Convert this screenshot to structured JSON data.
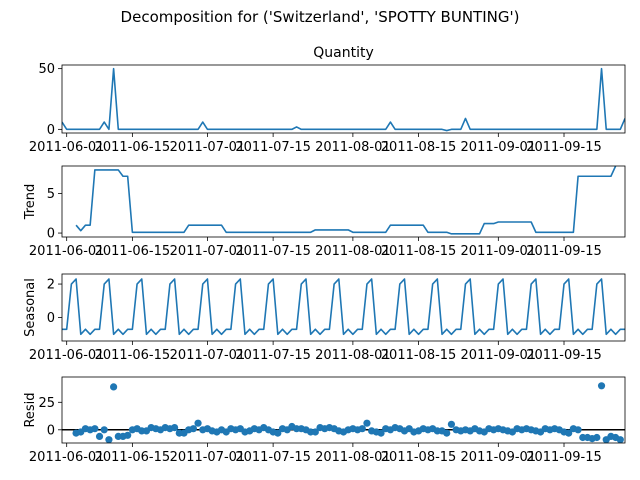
{
  "figure": {
    "title": "Decomposition for ('Switzerland', 'SPOTTY BUNTING')",
    "line_color": "#1f77b4"
  },
  "x_axis": {
    "start_date": "2011-05-31",
    "end_date": "2011-09-28",
    "tick_dates": [
      "2011-06-01",
      "2011-06-15",
      "2011-07-01",
      "2011-07-15",
      "2011-08-01",
      "2011-08-15",
      "2011-09-01",
      "2011-09-15"
    ],
    "tick_labels": [
      "2011-06-01",
      "2011-06-15",
      "2011-07-01",
      "2011-07-15",
      "2011-08-01",
      "2011-08-15",
      "2011-09-01",
      "2011-09-15"
    ]
  },
  "chart_data": [
    {
      "type": "line",
      "title": "Quantity",
      "ylabel": "",
      "ylim": [
        -3,
        53
      ],
      "yticks": [
        0,
        50
      ],
      "grid": false,
      "series": [
        {
          "values": [
            {
              "x": "2011-05-31",
              "y": 6
            },
            {
              "x": "2011-06-01",
              "y": 0
            },
            {
              "x": "2011-06-08",
              "y": 0
            },
            {
              "x": "2011-06-09",
              "y": 6
            },
            {
              "x": "2011-06-10",
              "y": 0
            },
            {
              "x": "2011-06-11",
              "y": 50
            },
            {
              "x": "2011-06-12",
              "y": 0
            },
            {
              "x": "2011-06-29",
              "y": 0
            },
            {
              "x": "2011-06-30",
              "y": 6
            },
            {
              "x": "2011-07-01",
              "y": 0
            },
            {
              "x": "2011-07-19",
              "y": 0
            },
            {
              "x": "2011-07-20",
              "y": 2
            },
            {
              "x": "2011-07-21",
              "y": 0
            },
            {
              "x": "2011-08-08",
              "y": 0
            },
            {
              "x": "2011-08-09",
              "y": 6
            },
            {
              "x": "2011-08-10",
              "y": 0
            },
            {
              "x": "2011-08-20",
              "y": 0
            },
            {
              "x": "2011-08-21",
              "y": -1
            },
            {
              "x": "2011-08-22",
              "y": 0
            },
            {
              "x": "2011-08-24",
              "y": 0
            },
            {
              "x": "2011-08-25",
              "y": 9
            },
            {
              "x": "2011-08-26",
              "y": 0
            },
            {
              "x": "2011-09-22",
              "y": 0
            },
            {
              "x": "2011-09-23",
              "y": 50
            },
            {
              "x": "2011-09-24",
              "y": 0
            },
            {
              "x": "2011-09-27",
              "y": 0
            },
            {
              "x": "2011-09-28",
              "y": 9
            }
          ]
        }
      ]
    },
    {
      "type": "line",
      "title": "",
      "ylabel": "Trend",
      "ylim": [
        -0.5,
        8.5
      ],
      "yticks": [
        0,
        5
      ],
      "grid": false,
      "series": [
        {
          "values": [
            {
              "x": "2011-06-03",
              "y": 1
            },
            {
              "x": "2011-06-04",
              "y": 0.3
            },
            {
              "x": "2011-06-05",
              "y": 1
            },
            {
              "x": "2011-06-06",
              "y": 1
            },
            {
              "x": "2011-06-07",
              "y": 8
            },
            {
              "x": "2011-06-12",
              "y": 8
            },
            {
              "x": "2011-06-13",
              "y": 7.2
            },
            {
              "x": "2011-06-14",
              "y": 7.2
            },
            {
              "x": "2011-06-15",
              "y": 0.1
            },
            {
              "x": "2011-06-26",
              "y": 0.1
            },
            {
              "x": "2011-06-27",
              "y": 1
            },
            {
              "x": "2011-07-04",
              "y": 1
            },
            {
              "x": "2011-07-05",
              "y": 0.1
            },
            {
              "x": "2011-07-23",
              "y": 0.1
            },
            {
              "x": "2011-07-24",
              "y": 0.4
            },
            {
              "x": "2011-07-31",
              "y": 0.4
            },
            {
              "x": "2011-08-01",
              "y": 0.1
            },
            {
              "x": "2011-08-08",
              "y": 0.1
            },
            {
              "x": "2011-08-09",
              "y": 1
            },
            {
              "x": "2011-08-16",
              "y": 1
            },
            {
              "x": "2011-08-17",
              "y": 0.1
            },
            {
              "x": "2011-08-21",
              "y": 0.1
            },
            {
              "x": "2011-08-22",
              "y": -0.1
            },
            {
              "x": "2011-08-28",
              "y": -0.1
            },
            {
              "x": "2011-08-29",
              "y": 1.2
            },
            {
              "x": "2011-08-31",
              "y": 1.2
            },
            {
              "x": "2011-09-01",
              "y": 1.4
            },
            {
              "x": "2011-09-08",
              "y": 1.4
            },
            {
              "x": "2011-09-09",
              "y": 0.1
            },
            {
              "x": "2011-09-17",
              "y": 0.1
            },
            {
              "x": "2011-09-18",
              "y": 7.2
            },
            {
              "x": "2011-09-25",
              "y": 7.2
            },
            {
              "x": "2011-09-26",
              "y": 8.5
            }
          ]
        }
      ]
    },
    {
      "type": "line",
      "title": "",
      "ylabel": "Seasonal",
      "ylim": [
        -1.4,
        2.6
      ],
      "yticks": [
        0,
        2
      ],
      "grid": false,
      "series": [
        {
          "pattern": {
            "start": "2011-05-31",
            "end": "2011-09-28",
            "period_days": 7,
            "cycle": [
              -0.7,
              -0.7,
              2.0,
              2.3,
              -1.0,
              -0.7,
              -1.0
            ]
          }
        }
      ]
    },
    {
      "type": "scatter",
      "title": "",
      "ylabel": "Resid",
      "ylim": [
        -12,
        48
      ],
      "yticks": [
        0,
        25
      ],
      "zero_line": true,
      "grid": false,
      "series": [
        {
          "values": [
            {
              "x": "2011-06-03",
              "y": -3
            },
            {
              "x": "2011-06-04",
              "y": -2
            },
            {
              "x": "2011-06-05",
              "y": 1
            },
            {
              "x": "2011-06-06",
              "y": 0
            },
            {
              "x": "2011-06-07",
              "y": 1
            },
            {
              "x": "2011-06-08",
              "y": -6
            },
            {
              "x": "2011-06-09",
              "y": 0
            },
            {
              "x": "2011-06-10",
              "y": -9
            },
            {
              "x": "2011-06-11",
              "y": 39
            },
            {
              "x": "2011-06-12",
              "y": -6
            },
            {
              "x": "2011-06-13",
              "y": -6
            },
            {
              "x": "2011-06-14",
              "y": -5
            },
            {
              "x": "2011-06-15",
              "y": 0
            },
            {
              "x": "2011-06-16",
              "y": 1
            },
            {
              "x": "2011-06-17",
              "y": -1
            },
            {
              "x": "2011-06-18",
              "y": -1
            },
            {
              "x": "2011-06-19",
              "y": 2
            },
            {
              "x": "2011-06-20",
              "y": 1
            },
            {
              "x": "2011-06-21",
              "y": 0
            },
            {
              "x": "2011-06-22",
              "y": 2
            },
            {
              "x": "2011-06-23",
              "y": 1
            },
            {
              "x": "2011-06-24",
              "y": 2
            },
            {
              "x": "2011-06-25",
              "y": -3
            },
            {
              "x": "2011-06-26",
              "y": -3
            },
            {
              "x": "2011-06-27",
              "y": 0
            },
            {
              "x": "2011-06-28",
              "y": 1
            },
            {
              "x": "2011-06-29",
              "y": 6
            },
            {
              "x": "2011-06-30",
              "y": 0
            },
            {
              "x": "2011-07-01",
              "y": 1
            },
            {
              "x": "2011-07-02",
              "y": -1
            },
            {
              "x": "2011-07-03",
              "y": -2
            },
            {
              "x": "2011-07-04",
              "y": 0
            },
            {
              "x": "2011-07-05",
              "y": -2
            },
            {
              "x": "2011-07-06",
              "y": 1
            },
            {
              "x": "2011-07-07",
              "y": 0
            },
            {
              "x": "2011-07-08",
              "y": 1
            },
            {
              "x": "2011-07-09",
              "y": -2
            },
            {
              "x": "2011-07-10",
              "y": -1
            },
            {
              "x": "2011-07-11",
              "y": 1
            },
            {
              "x": "2011-07-12",
              "y": 0
            },
            {
              "x": "2011-07-13",
              "y": 2
            },
            {
              "x": "2011-07-14",
              "y": 0
            },
            {
              "x": "2011-07-15",
              "y": -2
            },
            {
              "x": "2011-07-16",
              "y": -3
            },
            {
              "x": "2011-07-17",
              "y": 1
            },
            {
              "x": "2011-07-18",
              "y": 0
            },
            {
              "x": "2011-07-19",
              "y": 3
            },
            {
              "x": "2011-07-20",
              "y": 1
            },
            {
              "x": "2011-07-21",
              "y": 1
            },
            {
              "x": "2011-07-22",
              "y": 0
            },
            {
              "x": "2011-07-23",
              "y": -2
            },
            {
              "x": "2011-07-24",
              "y": -2
            },
            {
              "x": "2011-07-25",
              "y": 2
            },
            {
              "x": "2011-07-26",
              "y": 1
            },
            {
              "x": "2011-07-27",
              "y": 2
            },
            {
              "x": "2011-07-28",
              "y": 1
            },
            {
              "x": "2011-07-29",
              "y": -1
            },
            {
              "x": "2011-07-30",
              "y": -2
            },
            {
              "x": "2011-07-31",
              "y": 0
            },
            {
              "x": "2011-08-01",
              "y": 1
            },
            {
              "x": "2011-08-02",
              "y": 0
            },
            {
              "x": "2011-08-03",
              "y": 1
            },
            {
              "x": "2011-08-04",
              "y": 6
            },
            {
              "x": "2011-08-05",
              "y": -1
            },
            {
              "x": "2011-08-06",
              "y": -2
            },
            {
              "x": "2011-08-07",
              "y": -3
            },
            {
              "x": "2011-08-08",
              "y": 1
            },
            {
              "x": "2011-08-09",
              "y": 0
            },
            {
              "x": "2011-08-10",
              "y": 2
            },
            {
              "x": "2011-08-11",
              "y": 1
            },
            {
              "x": "2011-08-12",
              "y": -1
            },
            {
              "x": "2011-08-13",
              "y": 1
            },
            {
              "x": "2011-08-14",
              "y": -2
            },
            {
              "x": "2011-08-15",
              "y": -1
            },
            {
              "x": "2011-08-16",
              "y": 1
            },
            {
              "x": "2011-08-17",
              "y": 0
            },
            {
              "x": "2011-08-18",
              "y": 1
            },
            {
              "x": "2011-08-19",
              "y": -1
            },
            {
              "x": "2011-08-20",
              "y": -1
            },
            {
              "x": "2011-08-21",
              "y": -3
            },
            {
              "x": "2011-08-22",
              "y": 5
            },
            {
              "x": "2011-08-23",
              "y": 0
            },
            {
              "x": "2011-08-24",
              "y": -1
            },
            {
              "x": "2011-08-25",
              "y": 0
            },
            {
              "x": "2011-08-26",
              "y": -1
            },
            {
              "x": "2011-08-27",
              "y": 1
            },
            {
              "x": "2011-08-28",
              "y": -1
            },
            {
              "x": "2011-08-29",
              "y": -2
            },
            {
              "x": "2011-08-30",
              "y": 1
            },
            {
              "x": "2011-08-31",
              "y": 0
            },
            {
              "x": "2011-09-01",
              "y": 1
            },
            {
              "x": "2011-09-02",
              "y": 0
            },
            {
              "x": "2011-09-03",
              "y": -1
            },
            {
              "x": "2011-09-04",
              "y": -2
            },
            {
              "x": "2011-09-05",
              "y": 1
            },
            {
              "x": "2011-09-06",
              "y": 0
            },
            {
              "x": "2011-09-07",
              "y": 1
            },
            {
              "x": "2011-09-08",
              "y": 0
            },
            {
              "x": "2011-09-09",
              "y": -1
            },
            {
              "x": "2011-09-10",
              "y": -2
            },
            {
              "x": "2011-09-11",
              "y": 1
            },
            {
              "x": "2011-09-12",
              "y": 0
            },
            {
              "x": "2011-09-13",
              "y": 1
            },
            {
              "x": "2011-09-14",
              "y": 0
            },
            {
              "x": "2011-09-15",
              "y": -2
            },
            {
              "x": "2011-09-16",
              "y": -3
            },
            {
              "x": "2011-09-17",
              "y": 1
            },
            {
              "x": "2011-09-18",
              "y": 0
            },
            {
              "x": "2011-09-19",
              "y": -7
            },
            {
              "x": "2011-09-20",
              "y": -7
            },
            {
              "x": "2011-09-21",
              "y": -8
            },
            {
              "x": "2011-09-22",
              "y": -7
            },
            {
              "x": "2011-09-23",
              "y": 40
            },
            {
              "x": "2011-09-24",
              "y": -9
            },
            {
              "x": "2011-09-25",
              "y": -6
            },
            {
              "x": "2011-09-26",
              "y": -7
            },
            {
              "x": "2011-09-27",
              "y": -9
            }
          ]
        }
      ]
    }
  ]
}
